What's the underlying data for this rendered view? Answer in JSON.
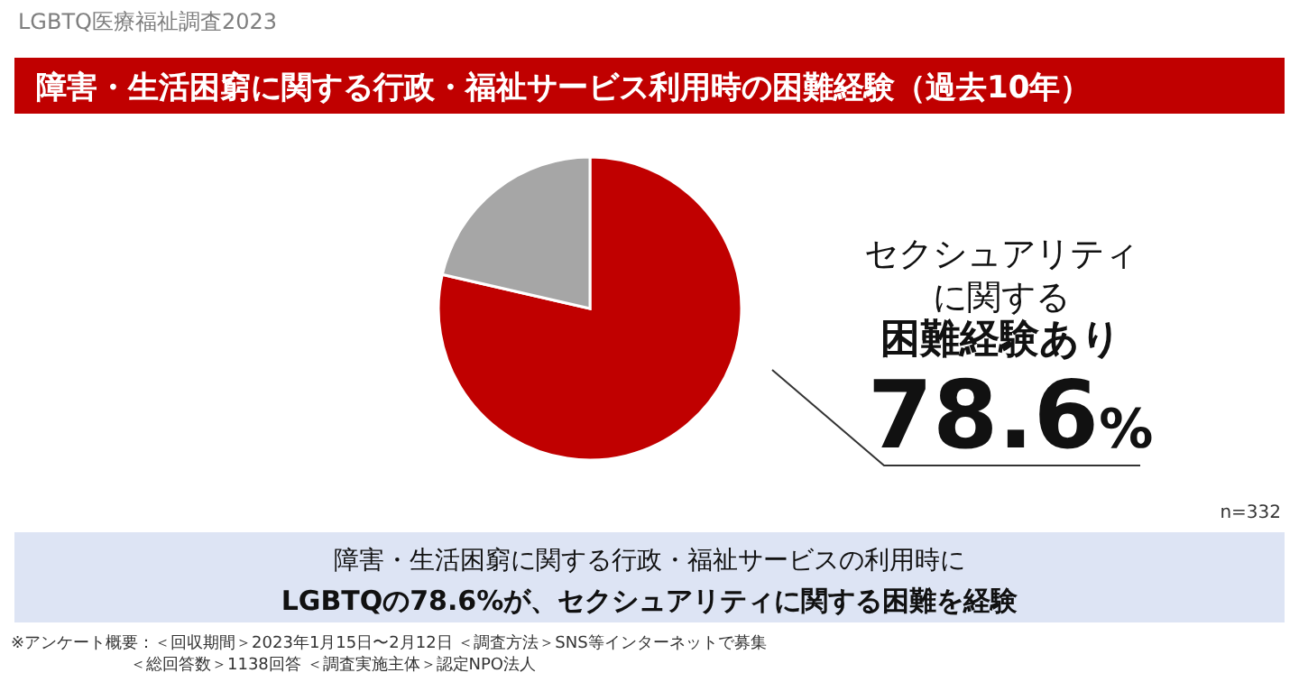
{
  "chart_data": {
    "type": "pie",
    "title": "障害・生活困窮に関する行政・福祉サービス利用時の困難経験（過去10年）",
    "categories": [
      "セクシュアリティに関する困難経験あり",
      null
    ],
    "values": [
      78.6,
      21.4
    ],
    "colors": [
      "#c00000",
      "#a6a6a6"
    ],
    "value_labels": [
      "78.6%",
      null
    ],
    "annotations": [
      "LGBTQ医療福祉調査2023",
      "n=332",
      "障害・生活困窮に関する行政・福祉サービスの利用時に\nLGBTQの78.6%が、セクシュアリティに関する困難を経験",
      "※アンケート概要：＜回収期間＞2023年1月15日〜2月12日 ＜調査方法＞SNS等インターネットで募集",
      "＜総回答数＞1138回答 ＜調査実施主体＞認定NPO法人"
    ]
  }
}
